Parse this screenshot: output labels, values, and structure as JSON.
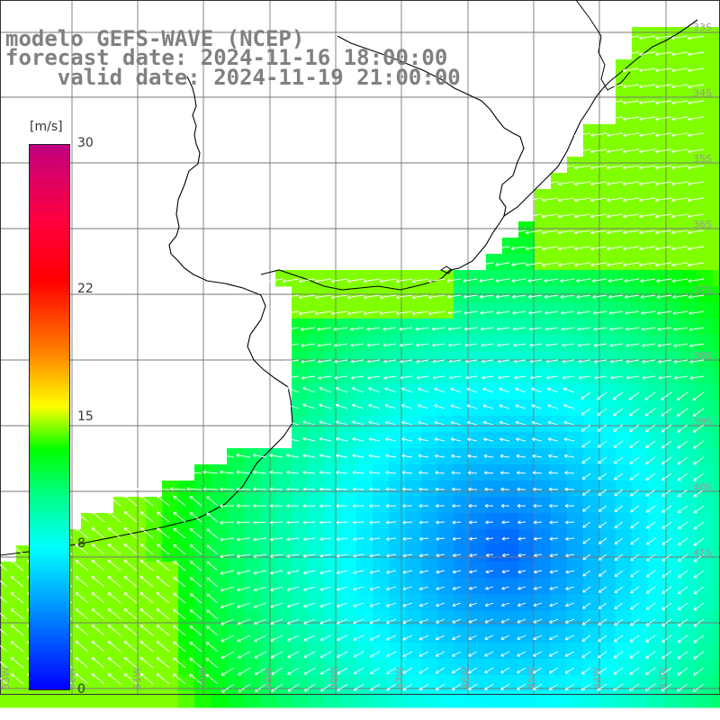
{
  "title": {
    "line1": "modelo GEFS-WAVE (NCEP)",
    "line2": "forecast date: 2024-11-16 18:00:00",
    "line3": "    valid date: 2024-11-19 21:00:00"
  },
  "colorbar": {
    "unit": "[m/s]",
    "ticks": [
      {
        "label": "30",
        "value": 30
      },
      {
        "label": "22",
        "value": 22
      },
      {
        "label": "15",
        "value": 15
      },
      {
        "label": "8",
        "value": 8
      },
      {
        "label": "0",
        "value": 0
      }
    ],
    "colors": [
      "#0000ff",
      "#0080ff",
      "#00ffff",
      "#00ff80",
      "#00ff00",
      "#ffff00",
      "#ff8000",
      "#ff0000",
      "#c00080"
    ]
  },
  "map": {
    "lat_labels": [
      "33S",
      "34S",
      "35S",
      "36S",
      "37S",
      "38S",
      "39S",
      "40S",
      "41S"
    ],
    "lon_labels": [
      "53W",
      "52W",
      "51W",
      "50W",
      "49W",
      "48W",
      "47W",
      "46W",
      "45W",
      "44W",
      "43W"
    ]
  }
}
